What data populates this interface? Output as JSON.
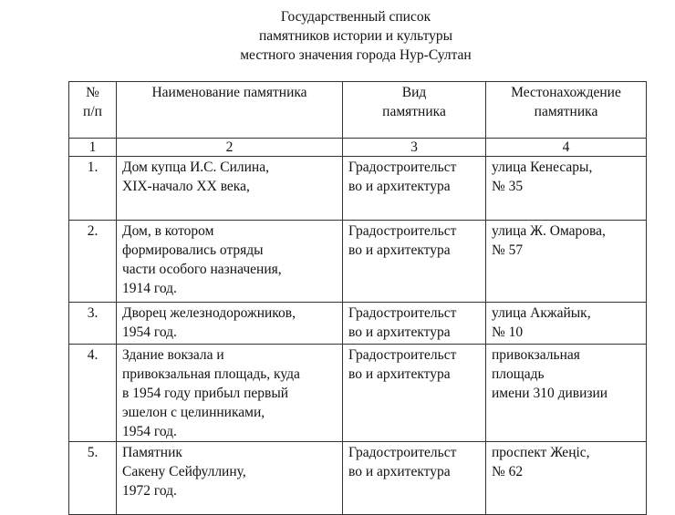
{
  "title": [
    "Государственный  список",
    "памятников истории и культуры",
    "местного значения города Нур-Султан"
  ],
  "table": {
    "headers": [
      [
        "№",
        "п/п"
      ],
      [
        "Наименование  памятника"
      ],
      [
        "Вид",
        "памятника"
      ],
      [
        "Местонахождение",
        "памятника"
      ]
    ],
    "column_numbers": [
      "1",
      "2",
      "3",
      "4"
    ],
    "rows": [
      {
        "num": "1.",
        "name": [
          "Дом купца И.С. Силина,",
          "XIX-начало XX века,"
        ],
        "type": [
          "Градостроительст",
          "во  и архитектура"
        ],
        "location": [
          "улица Кенесары,",
          "№ 35"
        ]
      },
      {
        "num": "2.",
        "name": [
          "Дом, в котором",
          "формировались отряды",
          "части особого назначения,",
          "1914 год."
        ],
        "type": [
          "Градостроительст",
          "во и архитектура"
        ],
        "location": [
          "улица Ж. Омарова,",
          "№ 57"
        ]
      },
      {
        "num": "3.",
        "name": [
          "Дворец железнодорожников,",
          "1954 год."
        ],
        "type": [
          "Градостроительст",
          "во  и архитектура"
        ],
        "location": [
          "улица Акжайык,",
          "№ 10"
        ]
      },
      {
        "num": "4.",
        "name": [
          "Здание вокзала и",
          "привокзальная площадь, куда",
          "в 1954 году прибыл первый",
          "эшелон с целинниками,",
          "1954 год."
        ],
        "type": [
          "Градостроительст",
          "во и архитектура"
        ],
        "location": [
          "привокзальная",
          "площадь",
          "имени 310 дивизии"
        ]
      },
      {
        "num": "5.",
        "name": [
          "Памятник",
          "Сакену  Сейфуллину,",
          "1972 год."
        ],
        "type": [
          "Градостроительст",
          "во и архитектура"
        ],
        "location": [
          "проспект Жеңіс,",
          "№ 62"
        ]
      }
    ]
  }
}
